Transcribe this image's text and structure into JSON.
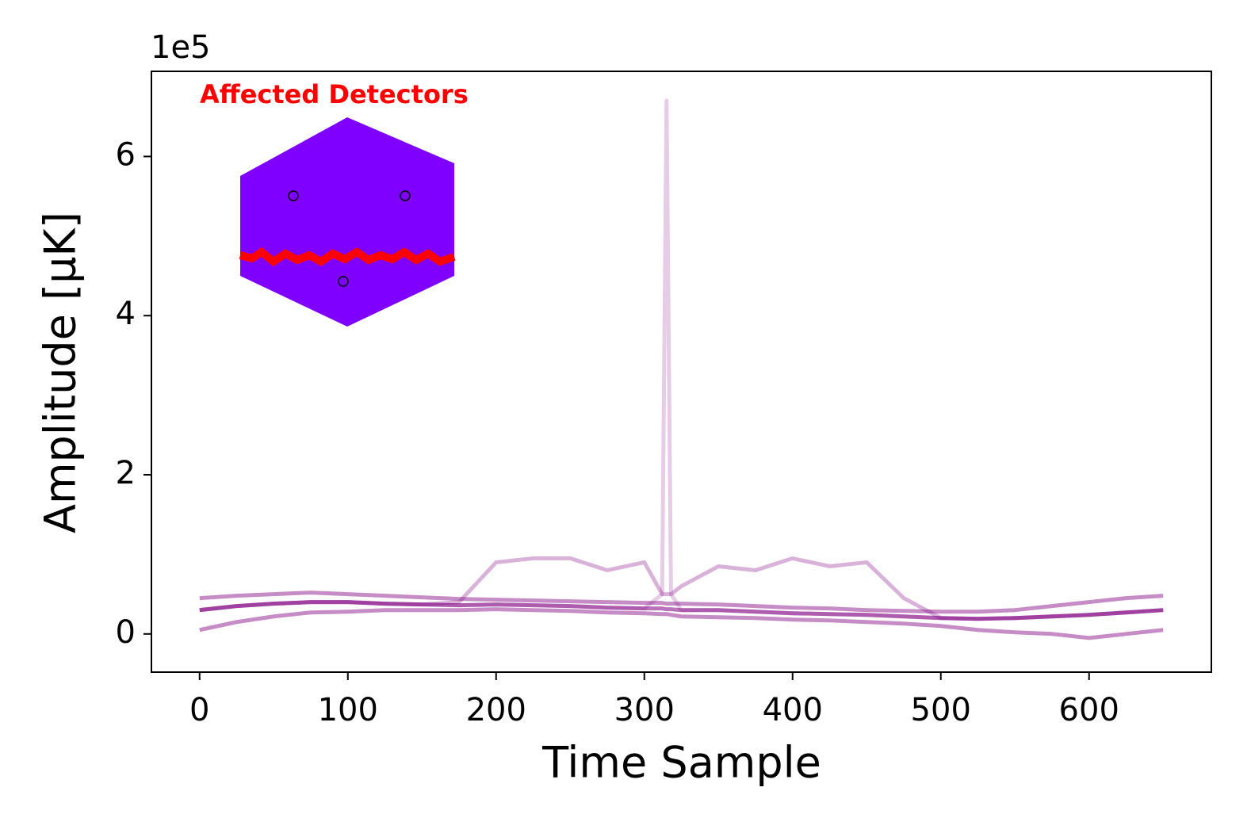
{
  "chart_data": {
    "type": "line",
    "xlabel": "Time Sample",
    "ylabel": "Amplitude [μK]",
    "y_offset_label": "1e5",
    "inset_title": "Affected Detectors",
    "x": [
      0,
      25,
      50,
      75,
      100,
      125,
      150,
      175,
      200,
      225,
      250,
      275,
      300,
      312,
      315,
      318,
      325,
      350,
      375,
      400,
      425,
      450,
      475,
      500,
      525,
      550,
      575,
      600,
      625,
      650
    ],
    "series": [
      {
        "color": "rgba(128,0,128,0.55)",
        "values": [
          0.3,
          0.35,
          0.38,
          0.4,
          0.4,
          0.38,
          0.37,
          0.36,
          0.37,
          0.36,
          0.35,
          0.33,
          0.32,
          0.32,
          0.31,
          0.31,
          0.3,
          0.3,
          0.28,
          0.26,
          0.25,
          0.24,
          0.22,
          0.2,
          0.19,
          0.2,
          0.22,
          0.24,
          0.27,
          0.3
        ]
      },
      {
        "color": "rgba(128,0,128,0.45)",
        "values": [
          0.45,
          0.48,
          0.5,
          0.52,
          0.5,
          0.48,
          0.46,
          0.44,
          0.43,
          0.42,
          0.41,
          0.4,
          0.39,
          0.39,
          0.38,
          0.38,
          0.38,
          0.37,
          0.35,
          0.33,
          0.32,
          0.3,
          0.29,
          0.28,
          0.28,
          0.3,
          0.35,
          0.4,
          0.45,
          0.48
        ]
      },
      {
        "color": "rgba(128,0,128,0.45)",
        "values": [
          0.05,
          0.15,
          0.22,
          0.27,
          0.28,
          0.3,
          0.3,
          0.3,
          0.31,
          0.3,
          0.29,
          0.27,
          0.26,
          0.25,
          0.25,
          0.24,
          0.22,
          0.21,
          0.2,
          0.18,
          0.17,
          0.15,
          0.13,
          0.1,
          0.05,
          0.02,
          0.0,
          -0.05,
          0.0,
          0.05
        ]
      },
      {
        "color": "rgba(128,0,128,0.3)",
        "values": [
          0.3,
          0.35,
          0.38,
          0.4,
          0.4,
          0.38,
          0.37,
          0.4,
          0.9,
          0.95,
          0.95,
          0.8,
          0.9,
          0.5,
          0.5,
          0.5,
          0.6,
          0.85,
          0.8,
          0.95,
          0.85,
          0.9,
          0.45,
          0.2,
          0.19,
          0.2,
          0.22,
          0.24,
          0.27,
          0.3
        ]
      },
      {
        "color": "rgba(128,0,128,0.2)",
        "values": [
          0.3,
          0.35,
          0.38,
          0.4,
          0.4,
          0.38,
          0.37,
          0.36,
          0.37,
          0.36,
          0.35,
          0.33,
          0.32,
          0.5,
          6.7,
          0.5,
          0.3,
          0.3,
          0.28,
          0.26,
          0.25,
          0.24,
          0.22,
          0.2,
          0.19,
          0.2,
          0.22,
          0.24,
          0.27,
          0.3
        ]
      }
    ],
    "xlim": [
      -32.5,
      682.5
    ],
    "ylim": [
      -0.48,
      7.07
    ],
    "xticks": [
      0,
      100,
      200,
      300,
      400,
      500,
      600
    ],
    "yticks": [
      0,
      2,
      4,
      6
    ]
  }
}
